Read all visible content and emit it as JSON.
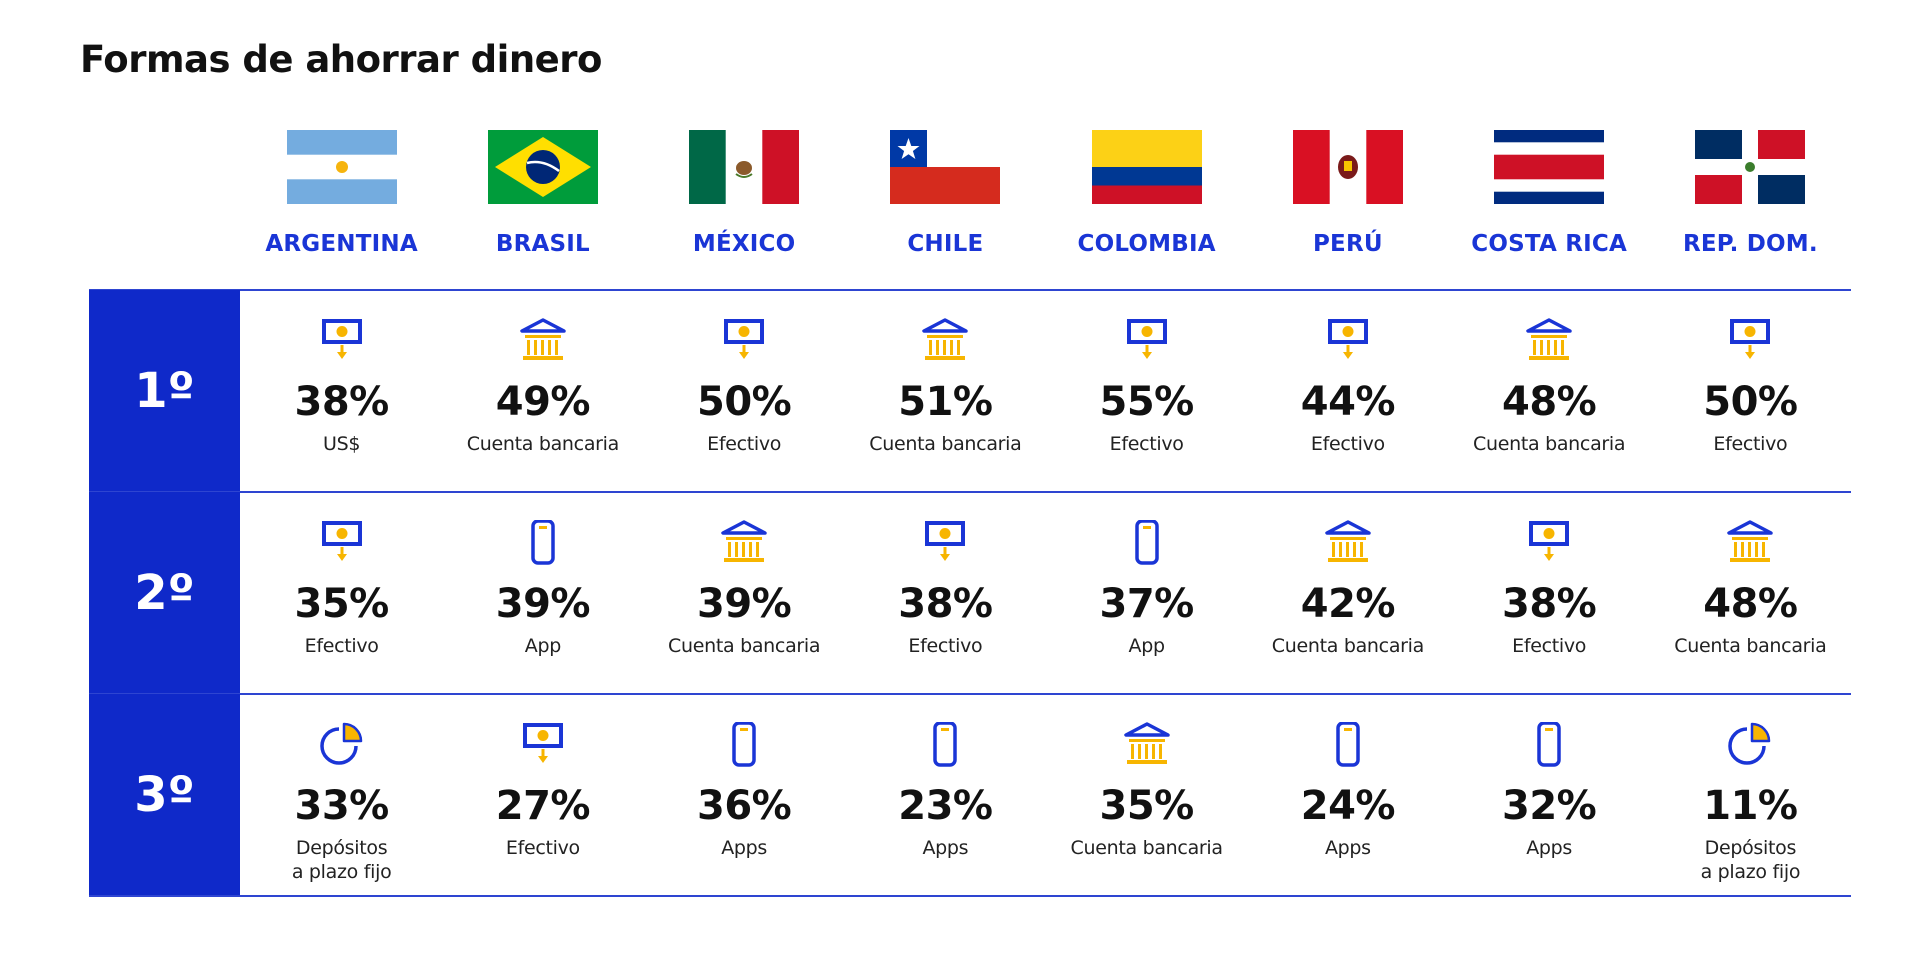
{
  "title": "Formas de ahorrar dinero",
  "colors": {
    "accent": "#0f29c9",
    "icon_blue": "#1a35d6",
    "icon_yellow": "#f7b500"
  },
  "countries": [
    {
      "name": "ARGENTINA",
      "flag": "argentina-flag"
    },
    {
      "name": "BRASIL",
      "flag": "brazil-flag"
    },
    {
      "name": "MÉXICO",
      "flag": "mexico-flag"
    },
    {
      "name": "CHILE",
      "flag": "chile-flag"
    },
    {
      "name": "COLOMBIA",
      "flag": "colombia-flag"
    },
    {
      "name": "PERÚ",
      "flag": "peru-flag"
    },
    {
      "name": "COSTA RICA",
      "flag": "costa-rica-flag"
    },
    {
      "name": "REP. DOM.",
      "flag": "dominican-republic-flag"
    }
  ],
  "rows": [
    {
      "rank": "1º",
      "cells": [
        {
          "value": "38%",
          "label": "US$",
          "icon": "cash-icon"
        },
        {
          "value": "49%",
          "label": "Cuenta bancaria",
          "icon": "bank-icon"
        },
        {
          "value": "50%",
          "label": "Efectivo",
          "icon": "cash-icon"
        },
        {
          "value": "51%",
          "label": "Cuenta bancaria",
          "icon": "bank-icon"
        },
        {
          "value": "55%",
          "label": "Efectivo",
          "icon": "cash-icon"
        },
        {
          "value": "44%",
          "label": "Efectivo",
          "icon": "cash-icon"
        },
        {
          "value": "48%",
          "label": "Cuenta bancaria",
          "icon": "bank-icon"
        },
        {
          "value": "50%",
          "label": "Efectivo",
          "icon": "cash-icon"
        }
      ]
    },
    {
      "rank": "2º",
      "cells": [
        {
          "value": "35%",
          "label": "Efectivo",
          "icon": "cash-icon"
        },
        {
          "value": "39%",
          "label": "App",
          "icon": "phone-icon"
        },
        {
          "value": "39%",
          "label": "Cuenta bancaria",
          "icon": "bank-icon"
        },
        {
          "value": "38%",
          "label": "Efectivo",
          "icon": "cash-icon"
        },
        {
          "value": "37%",
          "label": "App",
          "icon": "phone-icon"
        },
        {
          "value": "42%",
          "label": "Cuenta bancaria",
          "icon": "bank-icon"
        },
        {
          "value": "38%",
          "label": "Efectivo",
          "icon": "cash-icon"
        },
        {
          "value": "48%",
          "label": "Cuenta bancaria",
          "icon": "bank-icon"
        }
      ]
    },
    {
      "rank": "3º",
      "cells": [
        {
          "value": "33%",
          "label": "Depósitos\na plazo fijo",
          "icon": "pie-chart-icon"
        },
        {
          "value": "27%",
          "label": "Efectivo",
          "icon": "cash-icon"
        },
        {
          "value": "36%",
          "label": "Apps",
          "icon": "phone-icon"
        },
        {
          "value": "23%",
          "label": "Apps",
          "icon": "phone-icon"
        },
        {
          "value": "35%",
          "label": "Cuenta bancaria",
          "icon": "bank-icon"
        },
        {
          "value": "24%",
          "label": "Apps",
          "icon": "phone-icon"
        },
        {
          "value": "32%",
          "label": "Apps",
          "icon": "phone-icon"
        },
        {
          "value": "11%",
          "label": "Depósitos\na plazo fijo",
          "icon": "pie-chart-icon"
        }
      ]
    }
  ]
}
